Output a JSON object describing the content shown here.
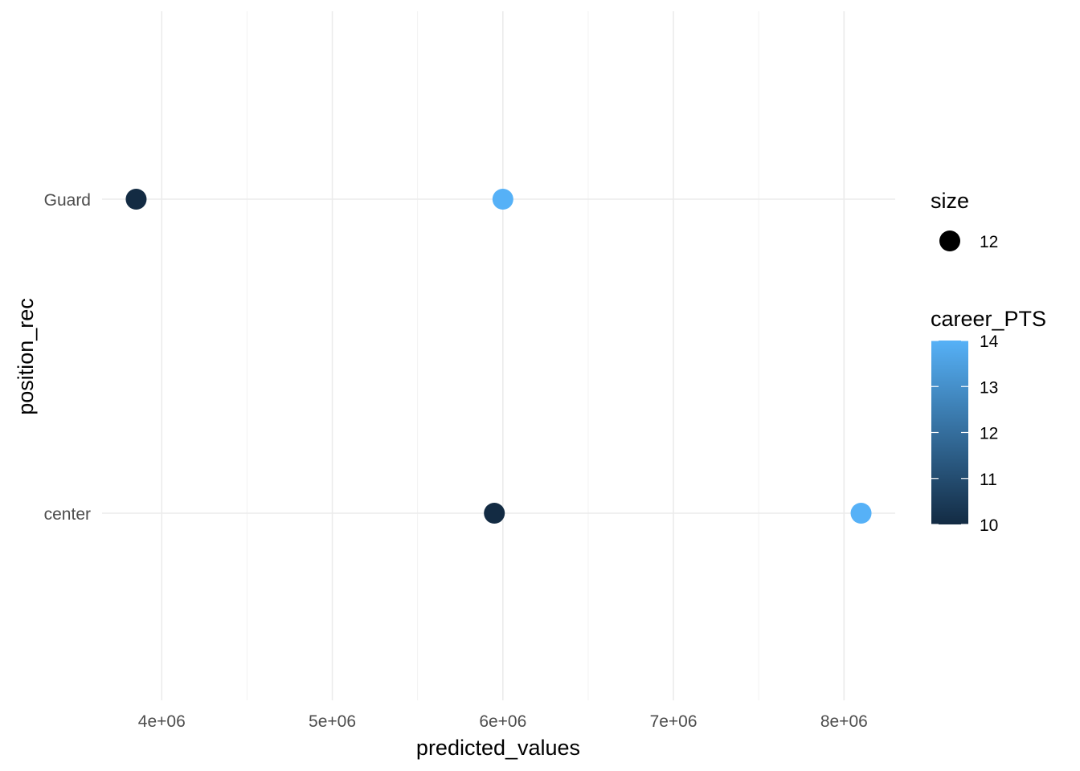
{
  "chart_data": {
    "type": "scatter",
    "xlabel": "predicted_values",
    "ylabel": "position_rec",
    "xlim": [
      3650000,
      8300000
    ],
    "x_ticks": [
      4000000,
      5000000,
      6000000,
      7000000,
      8000000
    ],
    "x_tick_labels": [
      "4e+06",
      "5e+06",
      "6e+06",
      "7e+06",
      "8e+06"
    ],
    "y_categories": [
      "center",
      "Guard"
    ],
    "grid": true,
    "points": [
      {
        "x": 3850000,
        "y": "Guard",
        "career_PTS": 10
      },
      {
        "x": 6000000,
        "y": "Guard",
        "career_PTS": 14
      },
      {
        "x": 5950000,
        "y": "center",
        "career_PTS": 10
      },
      {
        "x": 8100000,
        "y": "center",
        "career_PTS": 14
      }
    ],
    "legend": {
      "placement": "right",
      "size": {
        "title": "size",
        "value": "12"
      },
      "color": {
        "title": "career_PTS",
        "min": 10,
        "max": 14,
        "breaks": [
          10,
          11,
          12,
          13,
          14
        ],
        "low_color": "#132B43",
        "high_color": "#56B1F7"
      }
    }
  }
}
